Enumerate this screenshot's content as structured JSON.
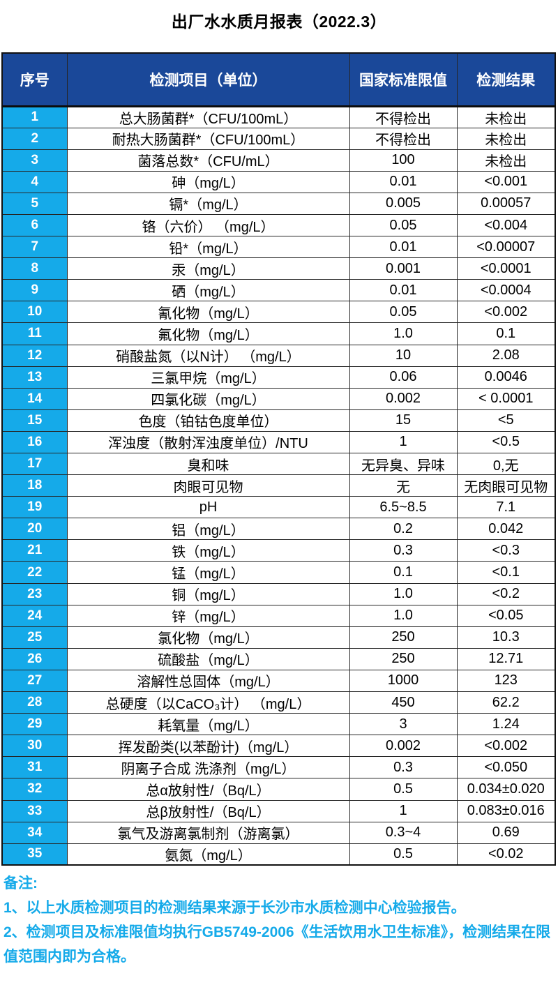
{
  "title": "出厂水水质月报表（2022.3）",
  "table": {
    "headers": [
      "序号",
      "检测项目（单位）",
      "国家标准限值",
      "检测结果"
    ],
    "rows": [
      {
        "no": "1",
        "item": "总大肠菌群*（CFU/100mL）",
        "limit": "不得检出",
        "result": "未检出"
      },
      {
        "no": "2",
        "item": "耐热大肠菌群*（CFU/100mL）",
        "limit": "不得检出",
        "result": "未检出"
      },
      {
        "no": "3",
        "item": "菌落总数*（CFU/mL）",
        "limit": "100",
        "result": "未检出"
      },
      {
        "no": "4",
        "item": "砷（mg/L）",
        "limit": "0.01",
        "result": "<0.001"
      },
      {
        "no": "5",
        "item": "镉*（mg/L）",
        "limit": "0.005",
        "result": "0.00057"
      },
      {
        "no": "6",
        "item": "铬（六价） （mg/L）",
        "limit": "0.05",
        "result": "<0.004"
      },
      {
        "no": "7",
        "item": "铅*（mg/L）",
        "limit": "0.01",
        "result": "<0.00007"
      },
      {
        "no": "8",
        "item": "汞（mg/L）",
        "limit": "0.001",
        "result": "<0.0001"
      },
      {
        "no": "9",
        "item": "硒（mg/L）",
        "limit": "0.01",
        "result": "<0.0004"
      },
      {
        "no": "10",
        "item": "氰化物（mg/L）",
        "limit": "0.05",
        "result": "<0.002"
      },
      {
        "no": "11",
        "item": "氟化物（mg/L）",
        "limit": "1.0",
        "result": "0.1"
      },
      {
        "no": "12",
        "item": "硝酸盐氮（以N计） （mg/L）",
        "limit": "10",
        "result": "2.08"
      },
      {
        "no": "13",
        "item": "三氯甲烷（mg/L）",
        "limit": "0.06",
        "result": "0.0046"
      },
      {
        "no": "14",
        "item": "四氯化碳（mg/L）",
        "limit": "0.002",
        "result": "< 0.0001"
      },
      {
        "no": "15",
        "item": "色度（铂钴色度单位）",
        "limit": "15",
        "result": "<5"
      },
      {
        "no": "16",
        "item": "浑浊度（散射浑浊度单位）/NTU",
        "limit": "1",
        "result": "<0.5"
      },
      {
        "no": "17",
        "item": "臭和味",
        "limit": "无异臭、异味",
        "result": "0,无"
      },
      {
        "no": "18",
        "item": "肉眼可见物",
        "limit": "无",
        "result": "无肉眼可见物"
      },
      {
        "no": "19",
        "item": "pH",
        "limit": "6.5~8.5",
        "result": "7.1"
      },
      {
        "no": "20",
        "item": "铝（mg/L）",
        "limit": "0.2",
        "result": "0.042"
      },
      {
        "no": "21",
        "item": "铁（mg/L）",
        "limit": "0.3",
        "result": "<0.3"
      },
      {
        "no": "22",
        "item": "锰（mg/L）",
        "limit": "0.1",
        "result": "<0.1"
      },
      {
        "no": "23",
        "item": "铜（mg/L）",
        "limit": "1.0",
        "result": "<0.2"
      },
      {
        "no": "24",
        "item": "锌（mg/L）",
        "limit": "1.0",
        "result": "<0.05"
      },
      {
        "no": "25",
        "item": "氯化物（mg/L）",
        "limit": "250",
        "result": "10.3"
      },
      {
        "no": "26",
        "item": "硫酸盐（mg/L）",
        "limit": "250",
        "result": "12.71"
      },
      {
        "no": "27",
        "item": "溶解性总固体（mg/L）",
        "limit": "1000",
        "result": "123"
      },
      {
        "no": "28",
        "item": "总硬度（以CaCO₃计） （mg/L）",
        "limit": "450",
        "result": "62.2"
      },
      {
        "no": "29",
        "item": "耗氧量（mg/L）",
        "limit": "3",
        "result": "1.24"
      },
      {
        "no": "30",
        "item": "挥发酚类(以苯酚计)（mg/L）",
        "limit": "0.002",
        "result": "<0.002"
      },
      {
        "no": "31",
        "item": "阴离子合成 洗涤剂（mg/L）",
        "limit": "0.3",
        "result": "<0.050"
      },
      {
        "no": "32",
        "item": "总α放射性/（Bq/L）",
        "limit": "0.5",
        "result": "0.034±0.020"
      },
      {
        "no": "33",
        "item": "总β放射性/（Bq/L）",
        "limit": "1",
        "result": "0.083±0.016"
      },
      {
        "no": "34",
        "item": "氯气及游离氯制剂（游离氯）",
        "limit": "0.3~4",
        "result": "0.69"
      },
      {
        "no": "35",
        "item": "氨氮（mg/L）",
        "limit": "0.5",
        "result": "<0.02"
      }
    ]
  },
  "notes": {
    "label": "备注:",
    "items": [
      "1、以上水质检测项目的检测结果来源于长沙市水质检测中心检验报告。",
      "2、检测项目及标准限值均执行GB5749-2006《生活饮用水卫生标准》，检测结果在限值范围内即为合格。"
    ]
  },
  "colors": {
    "header_bg": "#1a4899",
    "index_bg": "#15aae9",
    "accent": "#15aae9",
    "border_color": "#262626"
  }
}
